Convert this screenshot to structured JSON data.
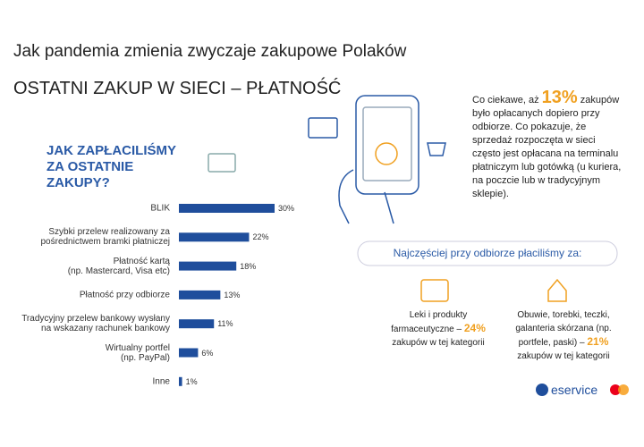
{
  "header": {
    "title": "Jak pandemia zmienia zwyczaje zakupowe Polaków",
    "subtitle": "OSTATNI ZAKUP W SIECI – PŁATNOŚĆ"
  },
  "chart_data": {
    "type": "bar",
    "orientation": "horizontal",
    "title": "JAK ZAPŁACILIŚMY\nZA OSTATNIE\nZAKUPY?",
    "categories": [
      "BLIK",
      "Szybki przelew realizowany za\npośrednictwem bramki płatniczej",
      "Płatność kartą\n(np. Mastercard, Visa etc)",
      "Płatność przy odbiorze",
      "Tradycyjny przelew bankowy wysłany\nna wskazany rachunek bankowy",
      "Wirtualny portfel\n(np. PayPal)",
      "Inne"
    ],
    "values": [
      30,
      22,
      18,
      13,
      11,
      6,
      1
    ],
    "value_labels": [
      "30%",
      "22%",
      "18%",
      "13%",
      "11%",
      "6%",
      "1%"
    ],
    "color": "#1f4e9c"
  },
  "callout": {
    "before": "Co ciekawe, aż ",
    "highlight": "13%",
    "after": " zakupów było opłacanych dopiero przy odbiorze. Co pokazuje, że sprzedaż rozpoczęta w sieci często jest opłacana na terminalu płatniczym lub gotówką (u kuriera, na poczcie lub w tradycyjnym sklepie)."
  },
  "section": {
    "title": "Najczęściej przy odbiorze płaciliśmy za:",
    "items": [
      {
        "before": "Leki i produkty\nfarmaceutyczne – ",
        "highlight": "24%",
        "after": "\nzakupów w tej kategorii"
      },
      {
        "before": "Obuwie, torebki, teczki,\ngalanteria skórzana (np.\nportfele, paski) – ",
        "highlight": "21%",
        "after": "\nzakupów w tej kategorii"
      }
    ]
  },
  "logo": {
    "brand": "eservice"
  }
}
